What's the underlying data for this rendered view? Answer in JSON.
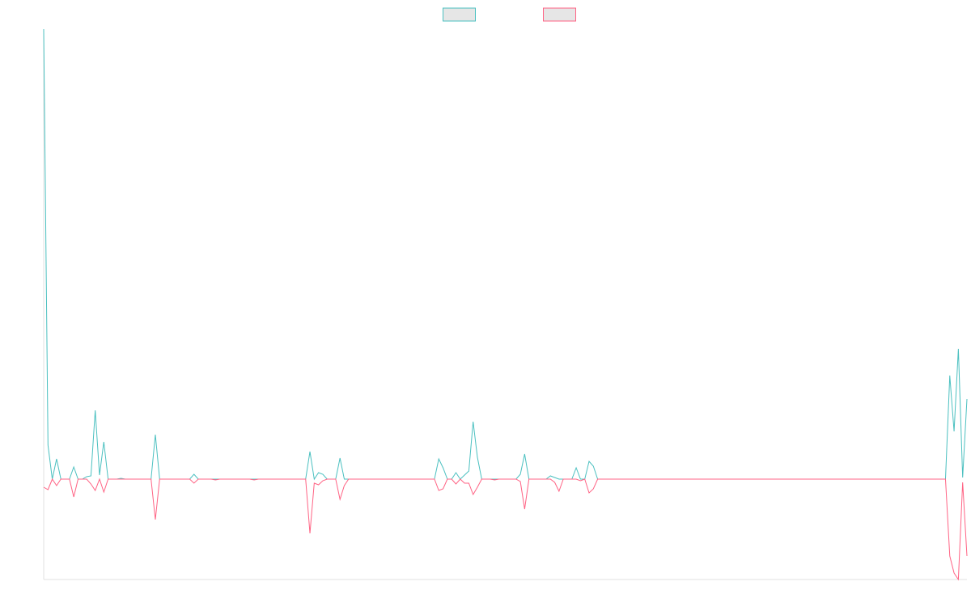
{
  "chart_data": {
    "type": "line",
    "legend": "top",
    "ylim": [
      -124,
      556
    ],
    "series": [
      {
        "color": "#4bc0c0",
        "values": [
          556,
          42,
          0,
          25,
          0,
          0,
          0,
          15,
          0,
          0,
          3,
          4,
          85,
          5,
          46,
          0,
          0,
          0,
          1,
          0,
          0,
          0,
          0,
          0,
          0,
          0,
          55,
          0,
          0,
          0,
          0,
          0,
          0,
          0,
          0,
          6,
          0,
          0,
          0,
          0,
          0,
          0,
          0,
          0,
          0,
          0,
          0,
          0,
          0,
          0,
          0,
          0,
          0,
          0,
          0,
          0,
          0,
          0,
          0,
          0,
          0,
          0,
          34,
          0,
          8,
          6,
          0,
          0,
          0,
          26,
          0,
          0,
          0,
          0,
          0,
          0,
          0,
          0,
          0,
          0,
          0,
          0,
          0,
          0,
          0,
          0,
          0,
          0,
          0,
          0,
          0,
          0,
          25,
          14,
          0,
          0,
          8,
          0,
          5,
          10,
          71,
          27,
          0,
          0,
          0,
          0,
          0,
          0,
          0,
          0,
          0,
          6,
          31,
          0,
          0,
          0,
          0,
          0,
          4,
          2,
          0,
          0,
          0,
          0,
          14,
          0,
          0,
          22,
          16,
          0,
          0,
          0,
          0,
          0,
          0,
          0,
          0,
          0,
          0,
          0,
          0,
          0,
          0,
          0,
          0,
          0,
          0,
          0,
          0,
          0,
          0,
          0,
          0,
          0,
          0,
          0,
          0,
          0,
          0,
          0,
          0,
          0,
          0,
          0,
          0,
          0,
          0,
          0,
          0,
          0,
          0,
          0,
          0,
          0,
          0,
          0,
          0,
          0,
          0,
          0,
          0,
          0,
          0,
          0,
          0,
          0,
          0,
          0,
          0,
          0,
          0,
          0,
          0,
          0,
          0,
          0,
          0,
          0,
          0,
          0,
          0,
          0,
          0,
          0,
          0,
          0,
          0,
          0,
          0,
          0,
          0,
          128,
          59,
          161,
          2,
          99
        ]
      },
      {
        "color": "#ff6384",
        "values": [
          -10,
          -13,
          0,
          -8,
          0,
          0,
          0,
          -22,
          0,
          0,
          0,
          -6,
          -14,
          0,
          -16,
          0,
          0,
          0,
          0,
          0,
          0,
          0,
          0,
          0,
          0,
          0,
          -50,
          0,
          0,
          0,
          0,
          0,
          0,
          0,
          0,
          -5,
          0,
          0,
          0,
          0,
          -1,
          0,
          0,
          0,
          0,
          0,
          0,
          0,
          0,
          -1,
          0,
          0,
          0,
          0,
          0,
          0,
          0,
          0,
          0,
          0,
          0,
          0,
          -67,
          -5,
          -7,
          -2,
          0,
          0,
          0,
          -25,
          -8,
          0,
          0,
          0,
          0,
          0,
          0,
          0,
          0,
          0,
          0,
          0,
          0,
          0,
          0,
          0,
          0,
          0,
          0,
          0,
          0,
          0,
          -14,
          -12,
          0,
          0,
          -6,
          0,
          -5,
          -5,
          -19,
          -10,
          0,
          0,
          0,
          -1,
          0,
          0,
          0,
          0,
          0,
          -3,
          -37,
          0,
          0,
          0,
          0,
          0,
          0,
          -4,
          -15,
          0,
          0,
          0,
          0,
          -2,
          0,
          -17,
          -12,
          0,
          0,
          0,
          0,
          0,
          0,
          0,
          0,
          0,
          0,
          0,
          0,
          0,
          0,
          0,
          0,
          0,
          0,
          0,
          0,
          0,
          0,
          0,
          0,
          0,
          0,
          0,
          0,
          0,
          0,
          0,
          0,
          0,
          0,
          0,
          0,
          0,
          0,
          0,
          0,
          0,
          0,
          0,
          0,
          0,
          0,
          0,
          0,
          0,
          0,
          0,
          0,
          0,
          0,
          0,
          0,
          0,
          0,
          0,
          0,
          0,
          0,
          0,
          0,
          0,
          0,
          0,
          0,
          0,
          0,
          0,
          0,
          0,
          0,
          0,
          0,
          0,
          0,
          0,
          0,
          0,
          0,
          -95,
          -116,
          -124,
          -4,
          -95
        ]
      }
    ]
  }
}
